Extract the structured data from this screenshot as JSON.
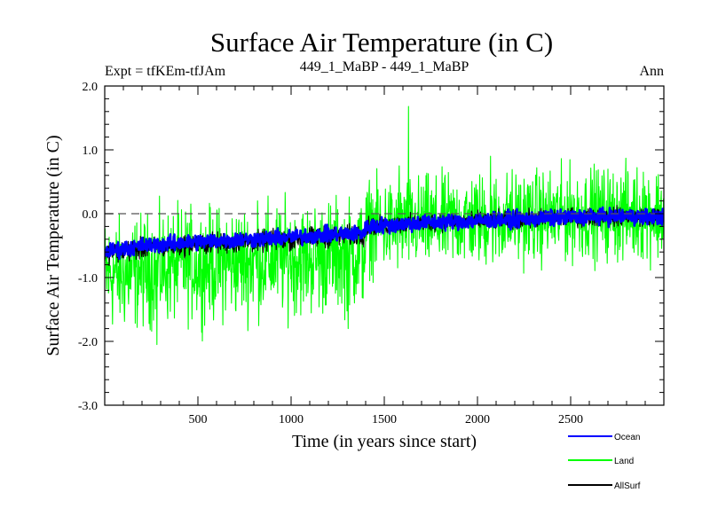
{
  "chart_data": {
    "type": "line",
    "title": "Surface Air Temperature (in C)",
    "subtitle_left": "Expt = tfKEm-tfJAm",
    "subtitle_center": "449_1_MaBP - 449_1_MaBP",
    "subtitle_right": "Ann",
    "xlabel": "Time (in years since start)",
    "ylabel": "Surface Air Temperature (in C)",
    "xlim": [
      0,
      3000
    ],
    "ylim": [
      -3.0,
      2.0
    ],
    "x_ticks": [
      500,
      1000,
      1500,
      2000,
      2500
    ],
    "y_ticks": [
      -3.0,
      -2.0,
      -1.0,
      0.0,
      1.0,
      2.0
    ],
    "y_tick_labels": [
      "-3.0",
      "-2.0",
      "-1.0",
      "0.0",
      "1.0",
      "2.0"
    ],
    "zero_line": 0.0,
    "legend_position": "bottom-right",
    "series": [
      {
        "name": "Land",
        "color": "#00ff00",
        "x": [
          0,
          100,
          200,
          300,
          400,
          500,
          600,
          700,
          800,
          900,
          1000,
          1100,
          1200,
          1300,
          1390,
          1410,
          1500,
          1600,
          1700,
          1800,
          1900,
          2000,
          2100,
          2200,
          2300,
          2400,
          2500,
          2600,
          2700,
          2800,
          2900,
          3000
        ],
        "y": [
          -0.95,
          -0.95,
          -0.9,
          -0.85,
          -0.8,
          -0.8,
          -0.8,
          -0.75,
          -0.75,
          -0.7,
          -0.7,
          -0.7,
          -0.65,
          -0.65,
          -0.6,
          -0.2,
          -0.2,
          -0.2,
          -0.15,
          -0.15,
          -0.1,
          -0.1,
          -0.1,
          -0.05,
          -0.05,
          -0.05,
          0.0,
          0.0,
          0.0,
          0.0,
          0.0,
          0.0
        ],
        "spread": [
          0.42,
          0.42,
          0.42,
          0.42,
          0.42,
          0.42,
          0.42,
          0.42,
          0.42,
          0.42,
          0.42,
          0.42,
          0.42,
          0.42,
          0.42,
          0.35,
          0.35,
          0.35,
          0.35,
          0.35,
          0.35,
          0.35,
          0.35,
          0.35,
          0.35,
          0.35,
          0.35,
          0.35,
          0.35,
          0.35,
          0.35,
          0.35
        ],
        "peaks": [
          [
            1630,
            1.68
          ],
          [
            2070,
            0.9
          ],
          [
            1580,
            0.75
          ],
          [
            2890,
            0.65
          ],
          [
            820,
            0.2
          ],
          [
            280,
            -2.05
          ],
          [
            1305,
            -1.8
          ]
        ]
      },
      {
        "name": "AllSurf",
        "color": "#000000",
        "x": [
          0,
          200,
          400,
          600,
          800,
          1000,
          1200,
          1390,
          1410,
          1600,
          1800,
          2000,
          2200,
          2400,
          2600,
          2800,
          3000
        ],
        "y": [
          -0.62,
          -0.55,
          -0.5,
          -0.46,
          -0.44,
          -0.4,
          -0.36,
          -0.33,
          -0.2,
          -0.16,
          -0.13,
          -0.11,
          -0.09,
          -0.07,
          -0.05,
          -0.04,
          -0.05
        ],
        "spread": [
          0.08,
          0.08,
          0.08,
          0.08,
          0.08,
          0.08,
          0.08,
          0.08,
          0.07,
          0.07,
          0.07,
          0.07,
          0.07,
          0.07,
          0.07,
          0.07,
          0.07
        ]
      },
      {
        "name": "Ocean",
        "color": "#0000ff",
        "x": [
          0,
          200,
          400,
          600,
          800,
          1000,
          1200,
          1390,
          1410,
          1600,
          1800,
          2000,
          2200,
          2400,
          2600,
          2800,
          3000
        ],
        "y": [
          -0.6,
          -0.5,
          -0.46,
          -0.42,
          -0.4,
          -0.37,
          -0.33,
          -0.3,
          -0.2,
          -0.16,
          -0.13,
          -0.11,
          -0.09,
          -0.07,
          -0.05,
          -0.04,
          -0.05
        ],
        "spread": [
          0.06,
          0.06,
          0.06,
          0.06,
          0.06,
          0.06,
          0.06,
          0.06,
          0.06,
          0.06,
          0.06,
          0.06,
          0.06,
          0.06,
          0.06,
          0.06,
          0.06
        ]
      }
    ]
  }
}
